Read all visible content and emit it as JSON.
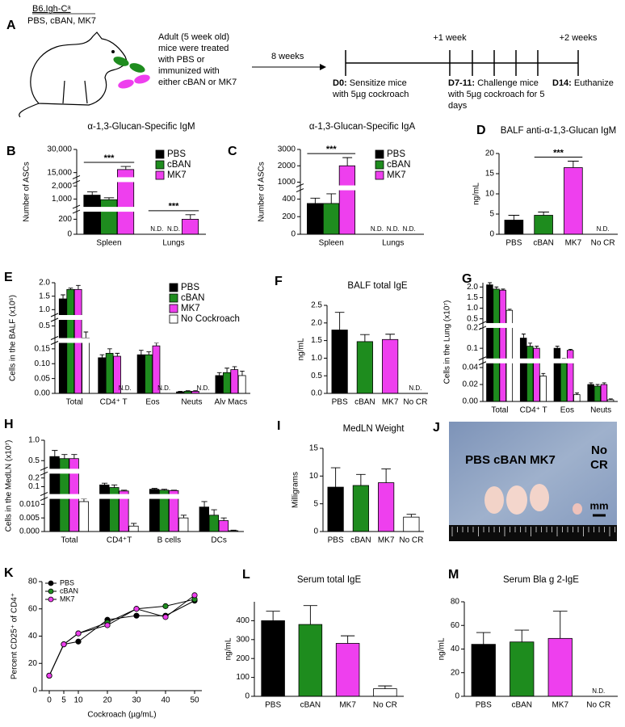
{
  "schematic": {
    "label": "A",
    "strain": "B6.Igh-Cᵃ",
    "groups": "PBS, cBAN, MK7",
    "treatment": [
      "Adult (5 week old)",
      "mice were treated",
      "with PBS or",
      "immunized with",
      "either cBAN or MK7"
    ],
    "interval": "8 weeks",
    "marks": [
      "+1 week",
      "+2 weeks"
    ],
    "steps": [
      {
        "day": "D0:",
        "text": [
          "Sensitize mice",
          "with 5µg cockroach"
        ]
      },
      {
        "day": "D7-11:",
        "text": [
          "Challenge mice",
          "with 5µg cockroach for 5",
          "days"
        ]
      },
      {
        "day": "D14:",
        "text": [
          "Euthanize"
        ]
      }
    ]
  },
  "photo": {
    "label": "J",
    "groups": "PBS cBAN MK7",
    "control": [
      "No",
      "CR"
    ],
    "scale": "mm"
  },
  "chart_data": [
    {
      "label": "B",
      "type": "bar",
      "title": "α-1,3-Glucan-Specific IgM",
      "ylabel": "Number of ASCs",
      "categories": [
        "Spleen",
        "Lungs"
      ],
      "series": [
        {
          "name": "PBS",
          "color": "#000000",
          "values": [
            1300,
            null
          ],
          "errors": [
            250,
            null
          ]
        },
        {
          "name": "cBAN",
          "color": "#1e8c1e",
          "values": [
            950,
            null
          ],
          "errors": [
            150,
            null
          ]
        },
        {
          "name": "MK7",
          "color": "#ee3fee",
          "values": [
            17000,
            200
          ],
          "errors": [
            2000,
            60
          ]
        }
      ],
      "segments": [
        {
          "ylim": [
            0,
            300
          ],
          "yticks": [
            0,
            200
          ]
        },
        {
          "ylim": [
            400,
            2300
          ],
          "yticks": [
            {
              "value": 1000,
              "label": "1,000"
            },
            {
              "value": 2000,
              "label": "2,000"
            }
          ]
        },
        {
          "ylim": [
            12000,
            30000
          ],
          "yticks": [
            {
              "value": 15000,
              "label": "15,000"
            },
            {
              "value": 30000,
              "label": "30,000"
            }
          ]
        }
      ],
      "annotations": [
        {
          "text": "N.D.",
          "category": 1,
          "series": 0
        },
        {
          "text": "N.D.",
          "category": 1,
          "series": 1
        }
      ],
      "significance": [
        {
          "text": "***",
          "category": 0,
          "from": 0,
          "to": 2
        },
        {
          "text": "***",
          "category": 1,
          "from": 0,
          "to": 2
        }
      ],
      "legend": "upper right"
    },
    {
      "label": "C",
      "type": "bar",
      "title": "α-1,3-Glucan-Specific IgA",
      "ylabel": "Number of ASCs",
      "categories": [
        "Spleen",
        "Lungs"
      ],
      "series": [
        {
          "name": "PBS",
          "color": "#000000",
          "values": [
            350,
            null
          ],
          "errors": [
            60,
            null
          ]
        },
        {
          "name": "cBAN",
          "color": "#1e8c1e",
          "values": [
            350,
            null
          ],
          "errors": [
            110,
            null
          ]
        },
        {
          "name": "MK7",
          "color": "#ee3fee",
          "values": [
            2000,
            null
          ],
          "errors": [
            500,
            null
          ]
        }
      ],
      "segments": [
        {
          "ylim": [
            0,
            500
          ],
          "yticks": [
            0,
            200,
            400
          ]
        },
        {
          "ylim": [
            800,
            3000
          ],
          "yticks": [
            1000,
            2000,
            3000
          ]
        }
      ],
      "annotations": [
        {
          "text": "N.D.",
          "category": 1,
          "series": 0
        },
        {
          "text": "N.D.",
          "category": 1,
          "series": 1
        },
        {
          "text": "N.D.",
          "category": 1,
          "series": 2
        }
      ],
      "significance": [
        {
          "text": "***",
          "category": 0,
          "from": 0,
          "to": 2
        }
      ],
      "legend": "upper right"
    },
    {
      "label": "D",
      "type": "bar",
      "title": "BALF anti-α-1,3-Glucan IgM",
      "ylabel": "ng/mL",
      "categories": [
        "PBS",
        "cBAN",
        "MK7",
        "No CR"
      ],
      "values": [
        3.5,
        4.7,
        16.5,
        null
      ],
      "errors": [
        1.2,
        0.8,
        1.6,
        null
      ],
      "colors": [
        "#000000",
        "#1e8c1e",
        "#ee3fee",
        "#ffffff"
      ],
      "ylim": [
        0,
        20
      ],
      "yticks": [
        0,
        5,
        10,
        15,
        20
      ],
      "annotations": [
        {
          "text": "N.D.",
          "category": 3
        }
      ],
      "significance": [
        {
          "text": "***",
          "from": 1,
          "to": 2
        }
      ]
    },
    {
      "label": "E",
      "type": "bar",
      "ylabel": "Cells in the BALF (x10⁶)",
      "categories": [
        "Total",
        "CD4⁺ T",
        "Eos",
        "Neuts",
        "Alv Macs"
      ],
      "series": [
        {
          "name": "PBS",
          "color": "#000000",
          "values": [
            1.4,
            0.12,
            0.13,
            0.005,
            0.06
          ],
          "errors": [
            0.15,
            0.01,
            0.015,
            0.002,
            0.01
          ]
        },
        {
          "name": "cBAN",
          "color": "#1e8c1e",
          "values": [
            1.75,
            0.135,
            0.13,
            0.007,
            0.07
          ],
          "errors": [
            0.05,
            0.015,
            0.01,
            0.002,
            0.015
          ]
        },
        {
          "name": "MK7",
          "color": "#ee3fee",
          "values": [
            1.75,
            0.125,
            0.16,
            0.007,
            0.08
          ],
          "errors": [
            0.15,
            0.01,
            0.01,
            0.002,
            0.01
          ]
        },
        {
          "name": "No Cockroach",
          "color": "#ffffff",
          "values": [
            0.3,
            null,
            null,
            null,
            0.06
          ],
          "errors": [
            0.1,
            null,
            null,
            null,
            0.015
          ]
        }
      ],
      "segments": [
        {
          "ylim": [
            0,
            0.17
          ],
          "yticks": [
            {
              "value": 0,
              "label": "0.00"
            },
            0.05,
            {
              "value": 0.1,
              "label": "0.10"
            },
            0.15
          ]
        },
        {
          "ylim": [
            0.3,
            0.6
          ],
          "yticks": [
            0.5
          ]
        },
        {
          "ylim": [
            0.8,
            2
          ],
          "yticks": [
            {
              "value": 1,
              "label": "1.0"
            },
            1.5,
            {
              "value": 2,
              "label": "2.0"
            }
          ]
        }
      ],
      "annotations": [
        {
          "text": "N.D.",
          "category": 1,
          "series": 3
        },
        {
          "text": "N.D.",
          "category": 2,
          "series": 3
        },
        {
          "text": "N.D.",
          "category": 3,
          "series": 3
        }
      ],
      "legend": "upper right"
    },
    {
      "label": "F",
      "type": "bar",
      "title": "BALF total IgE",
      "ylabel": "ng/mL",
      "categories": [
        "PBS",
        "cBAN",
        "MK7",
        "No CR"
      ],
      "values": [
        1.8,
        1.47,
        1.53,
        null
      ],
      "errors": [
        0.5,
        0.2,
        0.15,
        null
      ],
      "colors": [
        "#000000",
        "#1e8c1e",
        "#ee3fee",
        "#ffffff"
      ],
      "ylim": [
        0,
        2.5
      ],
      "yticks": [
        {
          "value": 0,
          "label": "0.0"
        },
        0.5,
        {
          "value": 1,
          "label": "1.0"
        },
        1.5,
        {
          "value": 2,
          "label": "2.0"
        },
        2.5
      ],
      "annotations": [
        {
          "text": "N.D.",
          "category": 3
        }
      ]
    },
    {
      "label": "G",
      "type": "bar",
      "ylabel": "Cells in the Lung (x10⁷)",
      "categories": [
        "Total",
        "CD4⁺ T",
        "Eos",
        "Neuts"
      ],
      "series": [
        {
          "name": "PBS",
          "color": "#000000",
          "values": [
            2.1,
            0.15,
            0.1,
            0.02
          ],
          "errors": [
            0.15,
            0.02,
            0.01,
            0.002
          ]
        },
        {
          "name": "cBAN",
          "color": "#1e8c1e",
          "values": [
            1.9,
            0.11,
            0.045,
            0.018
          ],
          "errors": [
            0.1,
            0.015,
            0.003,
            0.002
          ]
        },
        {
          "name": "MK7",
          "color": "#ee3fee",
          "values": [
            1.85,
            0.1,
            0.09,
            0.02
          ],
          "errors": [
            0.05,
            0.01,
            0.005,
            0.002
          ]
        },
        {
          "name": "No Cockroach",
          "color": "#ffffff",
          "values": [
            0.9,
            0.03,
            0.008,
            0.002
          ],
          "errors": [
            0.05,
            0.003,
            0.002,
            0.001
          ]
        }
      ],
      "segments": [
        {
          "ylim": [
            0,
            0.045
          ],
          "yticks": [
            {
              "value": 0,
              "label": "0.00"
            },
            0.02,
            0.04
          ]
        },
        {
          "ylim": [
            0.05,
            0.2
          ],
          "yticks": [
            0.1,
            0.2
          ]
        },
        {
          "ylim": [
            0.3,
            2.2
          ],
          "yticks": [
            0.5,
            {
              "value": 1,
              "label": "1.0"
            },
            1.5,
            {
              "value": 2,
              "label": "2.0"
            }
          ]
        }
      ]
    },
    {
      "label": "H",
      "type": "bar",
      "ylabel": "Cells in the MedLN (x10⁷)",
      "categories": [
        "Total",
        "CD4⁺T",
        "B cells",
        "DCs"
      ],
      "series": [
        {
          "name": "PBS",
          "color": "#000000",
          "values": [
            0.6,
            0.12,
            0.07,
            0.009
          ],
          "errors": [
            0.15,
            0.02,
            0.01,
            0.002
          ]
        },
        {
          "name": "cBAN",
          "color": "#1e8c1e",
          "values": [
            0.55,
            0.09,
            0.06,
            0.006
          ],
          "errors": [
            0.1,
            0.03,
            0.01,
            0.002
          ]
        },
        {
          "name": "MK7",
          "color": "#ee3fee",
          "values": [
            0.55,
            0.05,
            0.055,
            0.004
          ],
          "errors": [
            0.1,
            0.01,
            0.005,
            0.001
          ]
        },
        {
          "name": "No Cockroach",
          "color": "#ffffff",
          "values": [
            0.011,
            0.002,
            0.005,
            0.0003
          ],
          "errors": [
            0.001,
            0.001,
            0.001,
            0.0002
          ]
        }
      ],
      "segments": [
        {
          "ylim": [
            0,
            0.012
          ],
          "yticks": [
            {
              "value": 0,
              "label": "0.000"
            },
            0.005,
            {
              "value": 0.01,
              "label": "0.010"
            }
          ]
        },
        {
          "ylim": [
            0.015,
            0.25
          ],
          "yticks": [
            0.1,
            0.2
          ]
        },
        {
          "ylim": [
            0.3,
            1
          ],
          "yticks": [
            0.5,
            {
              "value": 1,
              "label": "1.0"
            }
          ]
        }
      ]
    },
    {
      "label": "I",
      "type": "bar",
      "title": "MedLN Weight",
      "ylabel": "Milligrams",
      "categories": [
        "PBS",
        "cBAN",
        "MK7",
        "No CR"
      ],
      "values": [
        8,
        8.3,
        8.8,
        2.6
      ],
      "errors": [
        3.5,
        2,
        2.5,
        0.5
      ],
      "colors": [
        "#000000",
        "#1e8c1e",
        "#ee3fee",
        "#ffffff"
      ],
      "ylim": [
        0,
        15
      ],
      "yticks": [
        0,
        5,
        10,
        15
      ]
    },
    {
      "label": "K",
      "type": "line",
      "xlabel": "Cockroach (µg/mL)",
      "ylabel": "Percent CD25⁺ of CD4⁺",
      "x": [
        0,
        5,
        10,
        20,
        30,
        40,
        50
      ],
      "series": [
        {
          "name": "PBS",
          "color": "#000000",
          "values": [
            11,
            34,
            36,
            52,
            55,
            55,
            66
          ]
        },
        {
          "name": "cBAN",
          "color": "#1e8c1e",
          "values": [
            11,
            34,
            42,
            50,
            60,
            62,
            67
          ]
        },
        {
          "name": "MK7",
          "color": "#ee3fee",
          "values": [
            11,
            34,
            42,
            48,
            60,
            54,
            70
          ]
        }
      ],
      "xlim": [
        -2.5,
        52.5
      ],
      "xticks": [
        0,
        5,
        10,
        20,
        30,
        40,
        50
      ],
      "ylim": [
        0,
        80
      ],
      "yticks": [
        0,
        20,
        40,
        60,
        80
      ],
      "legend": "upper left"
    },
    {
      "label": "L",
      "type": "bar",
      "title": "Serum total IgE",
      "ylabel": "ng/mL",
      "categories": [
        "PBS",
        "cBAN",
        "MK7",
        "No CR"
      ],
      "values": [
        400,
        380,
        280,
        40
      ],
      "errors": [
        50,
        100,
        40,
        15
      ],
      "colors": [
        "#000000",
        "#1e8c1e",
        "#ee3fee",
        "#ffffff"
      ],
      "ylim": [
        0,
        500
      ],
      "yticks": [
        0,
        100,
        200,
        300,
        400
      ]
    },
    {
      "label": "M",
      "type": "bar",
      "title": "Serum Bla g 2-IgE",
      "ylabel": "ng/mL",
      "categories": [
        "PBS",
        "cBAN",
        "MK7",
        "No CR"
      ],
      "values": [
        44,
        46,
        49,
        null
      ],
      "errors": [
        10,
        10,
        23,
        null
      ],
      "colors": [
        "#000000",
        "#1e8c1e",
        "#ee3fee",
        "#ffffff"
      ],
      "ylim": [
        0,
        80
      ],
      "yticks": [
        0,
        20,
        40,
        60,
        80
      ],
      "annotations": [
        {
          "text": "N.D.",
          "category": 3
        }
      ]
    }
  ]
}
